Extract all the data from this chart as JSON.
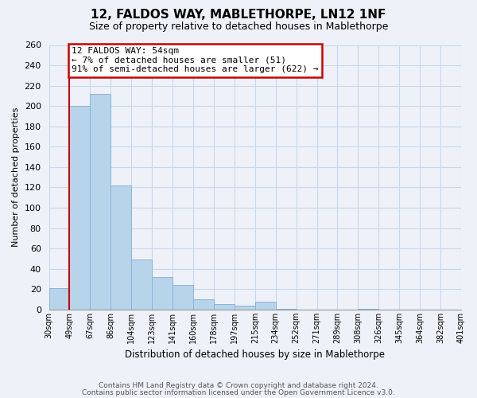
{
  "title": "12, FALDOS WAY, MABLETHORPE, LN12 1NF",
  "subtitle": "Size of property relative to detached houses in Mablethorpe",
  "xlabel": "Distribution of detached houses by size in Mablethorpe",
  "ylabel": "Number of detached properties",
  "heights": [
    21,
    200,
    212,
    122,
    49,
    32,
    24,
    10,
    5,
    4,
    8,
    1,
    0,
    0,
    0,
    1,
    0,
    0,
    0,
    0
  ],
  "all_labels": [
    "30sqm",
    "49sqm",
    "67sqm",
    "86sqm",
    "104sqm",
    "123sqm",
    "141sqm",
    "160sqm",
    "178sqm",
    "197sqm",
    "215sqm",
    "234sqm",
    "252sqm",
    "271sqm",
    "289sqm",
    "308sqm",
    "326sqm",
    "345sqm",
    "364sqm",
    "382sqm",
    "401sqm"
  ],
  "bar_color": "#b8d4eb",
  "bar_edge_color": "#8ab4d8",
  "grid_color": "#c8d8ec",
  "vline_x": 1,
  "vline_color": "#cc0000",
  "annotation_title": "12 FALDOS WAY: 54sqm",
  "annotation_line1": "← 7% of detached houses are smaller (51)",
  "annotation_line2": "91% of semi-detached houses are larger (622) →",
  "annotation_box_color": "#ffffff",
  "annotation_box_edge": "#cc0000",
  "ylim": [
    0,
    260
  ],
  "yticks": [
    0,
    20,
    40,
    60,
    80,
    100,
    120,
    140,
    160,
    180,
    200,
    220,
    240,
    260
  ],
  "footer1": "Contains HM Land Registry data © Crown copyright and database right 2024.",
  "footer2": "Contains public sector information licensed under the Open Government Licence v3.0.",
  "background_color": "#eef2f8",
  "plot_background": "#eef2f8"
}
